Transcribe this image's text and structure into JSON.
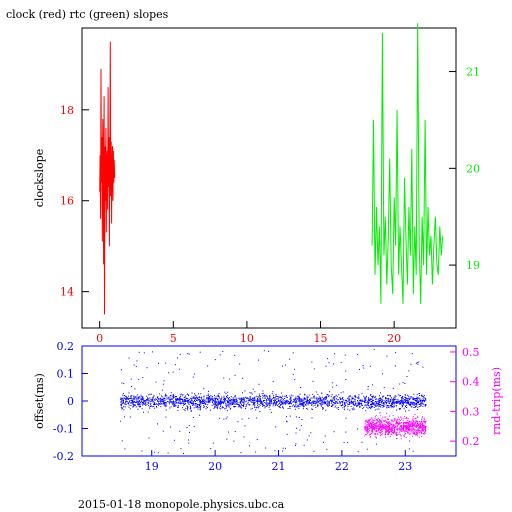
{
  "title": "clock (red) rtc (green) slopes",
  "footer": "2015-01-18  monopole.physics.ubc.ca",
  "colors": {
    "red": "#ff0000",
    "green": "#00ee00",
    "blue": "#0000ff",
    "magenta": "#ff00ff",
    "axis": "#000000"
  },
  "chart_data": [
    {
      "type": "line",
      "title": "clock (red) rtc (green) slopes",
      "ylabel": "clockslope",
      "xlim": [
        -1.2,
        24.2
      ],
      "ylim": [
        13.2,
        19.8
      ],
      "y2lim": [
        18.35,
        21.45
      ],
      "xticks": [
        0,
        5,
        10,
        15,
        20
      ],
      "yticks": [
        14,
        16,
        18
      ],
      "y2ticks": [
        19,
        20,
        21
      ],
      "series": [
        {
          "color": "#ff0000",
          "axis": "left",
          "x": [
            0.0,
            0.03,
            0.06,
            0.09,
            0.12,
            0.15,
            0.18,
            0.21,
            0.24,
            0.27,
            0.3,
            0.33,
            0.36,
            0.39,
            0.42,
            0.45,
            0.48,
            0.51,
            0.54,
            0.57,
            0.6,
            0.63,
            0.66,
            0.69,
            0.72,
            0.75,
            0.78,
            0.81,
            0.84,
            0.87,
            0.9,
            0.93,
            0.96,
            0.99,
            1.02
          ],
          "values": [
            16.2,
            17.0,
            15.6,
            18.9,
            16.4,
            17.4,
            15.1,
            17.8,
            16.9,
            14.6,
            18.3,
            13.5,
            17.2,
            16.0,
            17.6,
            15.3,
            16.8,
            17.1,
            15.8,
            18.5,
            16.3,
            17.4,
            15.0,
            16.9,
            19.5,
            16.1,
            17.3,
            15.5,
            16.8,
            17.2,
            16.0,
            17.1,
            16.4,
            16.9,
            16.5
          ]
        },
        {
          "color": "#00ee00",
          "axis": "right",
          "x": [
            18.5,
            18.6,
            18.7,
            18.8,
            18.9,
            19.0,
            19.1,
            19.2,
            19.3,
            19.4,
            19.5,
            19.6,
            19.7,
            19.8,
            19.9,
            20.0,
            20.1,
            20.2,
            20.3,
            20.4,
            20.5,
            20.6,
            20.7,
            20.8,
            20.9,
            21.0,
            21.1,
            21.2,
            21.3,
            21.4,
            21.5,
            21.6,
            21.7,
            21.8,
            21.9,
            22.0,
            22.1,
            22.2,
            22.3,
            22.4,
            22.5,
            22.6,
            22.7,
            22.8,
            22.9,
            23.0,
            23.1,
            23.2,
            23.3
          ],
          "values": [
            19.2,
            20.5,
            18.9,
            19.6,
            19.0,
            19.4,
            18.6,
            21.4,
            19.1,
            19.5,
            18.8,
            19.3,
            20.1,
            19.0,
            18.7,
            19.7,
            19.2,
            20.6,
            18.9,
            19.4,
            19.0,
            18.6,
            19.9,
            19.3,
            18.8,
            19.6,
            19.1,
            20.2,
            18.7,
            19.4,
            18.9,
            21.5,
            19.2,
            18.6,
            19.5,
            19.0,
            20.5,
            18.9,
            19.6,
            19.1,
            19.3,
            18.8,
            19.2,
            19.5,
            19.0,
            18.9,
            19.4,
            19.1,
            19.3
          ]
        }
      ]
    },
    {
      "type": "scatter",
      "ylabel": "offset(ms)",
      "y2label": "rnd-trip(ms)",
      "xlim": [
        17.9,
        23.8
      ],
      "ylim": [
        -0.2,
        0.2
      ],
      "y2lim": [
        0.15,
        0.52
      ],
      "xticks": [
        19,
        20,
        21,
        22,
        23
      ],
      "yticks": [
        -0.2,
        -0.1,
        0,
        0.1,
        0.2
      ],
      "y2ticks": [
        0.2,
        0.3,
        0.4,
        0.5
      ],
      "series": [
        {
          "color": "#0000ff",
          "axis": "left",
          "x_range": [
            18.5,
            23.32
          ],
          "center": 0.0,
          "spread": 0.025
        },
        {
          "color": "#ff00ff",
          "axis": "right",
          "x_range": [
            22.35,
            23.32
          ],
          "center": 0.25,
          "spread": 0.03
        }
      ]
    }
  ]
}
